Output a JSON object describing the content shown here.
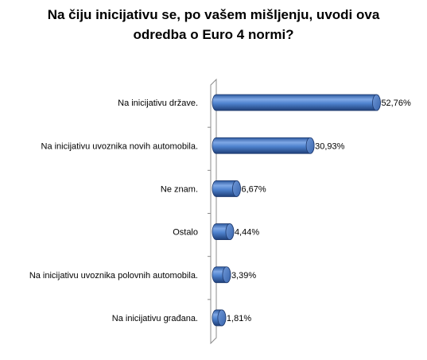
{
  "chart_data": {
    "type": "bar",
    "orientation": "horizontal",
    "title_lines": [
      "Na čiju inicijativu se, po vašem mišljenju, uvodi ova",
      "odredba o Euro 4 normi?"
    ],
    "categories": [
      "Na inicijativu države.",
      "Na inicijativu uvoznika novih automobila.",
      "Ne znam.",
      "Ostalo",
      "Na inicijativu uvoznika polovnih automobila.",
      "Na inicijativu građana."
    ],
    "values": [
      52.76,
      30.93,
      6.67,
      4.44,
      3.39,
      1.81
    ],
    "value_labels": [
      "52,76%",
      "30,93%",
      "6,67%",
      "4,44%",
      "3,39%",
      "1,81%"
    ],
    "unit": "%",
    "xlim": [
      0,
      55
    ],
    "legend": "none",
    "grid": false,
    "style": "3d-cylinder",
    "bar_color": "#4a7ec9"
  }
}
